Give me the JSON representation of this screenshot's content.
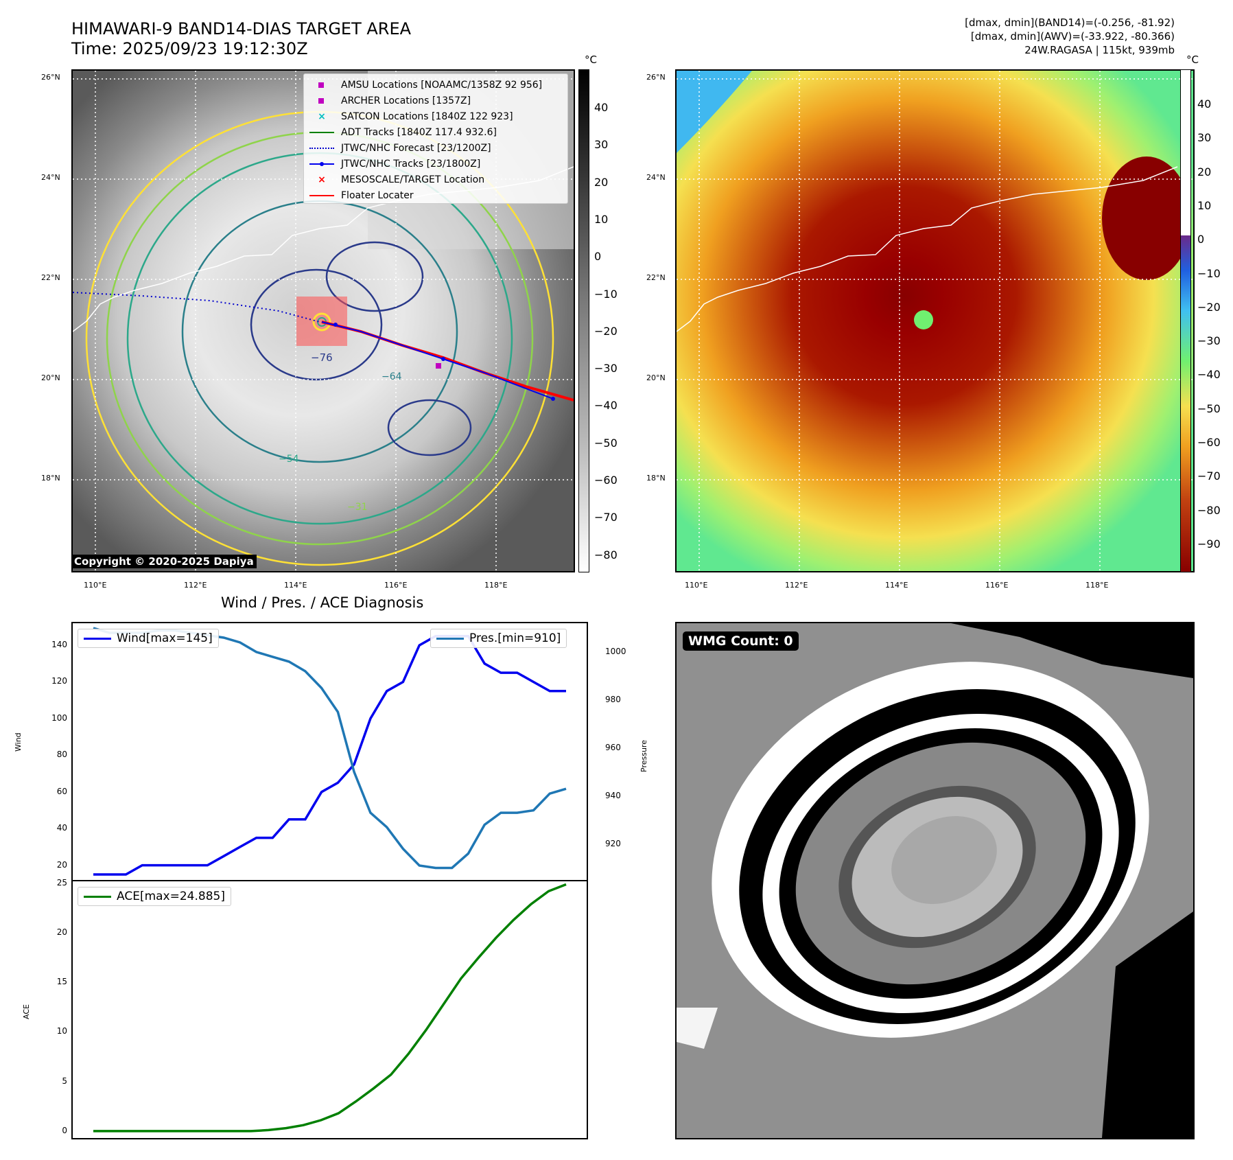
{
  "header": {
    "title": "HIMAWARI-9 BAND14-DIAS TARGET AREA",
    "time": "Time: 2025/09/23 19:12:30Z",
    "stats_band14": "[dmax, dmin](BAND14)=(-0.256, -81.92)",
    "stats_awv": "[dmax, dmin](AWV)=(-33.922, -80.366)",
    "storm": "24W.RAGASA | 115kt, 939mb"
  },
  "map_axes": {
    "lat_labels": [
      "26°N",
      "24°N",
      "22°N",
      "20°N",
      "18°N"
    ],
    "lon_labels": [
      "110°E",
      "112°E",
      "114°E",
      "116°E",
      "118°E"
    ]
  },
  "left_map": {
    "legend": [
      {
        "label": "AMSU Locations [NOAAMC/1358Z 92 956]",
        "symbol": "square",
        "color": "#c000c0"
      },
      {
        "label": "ARCHER Locations [1357Z]",
        "symbol": "square",
        "color": "#c000c0"
      },
      {
        "label": "SATCON Locations [1840Z 122 923]",
        "symbol": "x",
        "color": "#00bfbf"
      },
      {
        "label": "ADT Tracks [1840Z 117.4 932.6]",
        "symbol": "line",
        "color": "#008000"
      },
      {
        "label": "JTWC/NHC Forecast [23/1200Z]",
        "symbol": "dotted",
        "color": "#0000cc"
      },
      {
        "label": "JTWC/NHC Tracks [23/1800Z]",
        "symbol": "line-dot",
        "color": "#0000ee"
      },
      {
        "label": "MESOSCALE/TARGET Location",
        "symbol": "x",
        "color": "#ff0000"
      },
      {
        "label": "Floater Locater",
        "symbol": "line",
        "color": "#ff0000"
      }
    ],
    "colorbar": {
      "unit": "°C",
      "ticks": [
        "40",
        "30",
        "20",
        "10",
        "0",
        "−10",
        "−20",
        "−30",
        "−40",
        "−50",
        "−60",
        "−70",
        "−80"
      ]
    },
    "contour_labels": [
      "−76",
      "−64",
      "−54",
      "−31"
    ],
    "copyright": "Copyright © 2020-2025 Dapiya"
  },
  "right_map": {
    "colorbar": {
      "unit": "°C",
      "ticks": [
        "40",
        "30",
        "20",
        "10",
        "0",
        "−10",
        "−20",
        "−30",
        "−40",
        "−50",
        "−60",
        "−70",
        "−80",
        "−90"
      ]
    }
  },
  "wmg": {
    "label": "WMG Count: 0"
  },
  "chart_data": [
    {
      "type": "line",
      "title": "Wind / Pres. / ACE Diagnosis",
      "ylabel": "Wind",
      "ylabel_right": "Pressure",
      "ylim": [
        12,
        152
      ],
      "ylim_right": [
        905,
        1012
      ],
      "yticks": [
        20,
        40,
        60,
        80,
        100,
        120,
        140
      ],
      "yticks_right": [
        920,
        940,
        960,
        980,
        1000
      ],
      "series": [
        {
          "name": "Wind[max=145]",
          "axis": "left",
          "color": "#0000ee",
          "values": [
            15,
            15,
            15,
            20,
            20,
            20,
            20,
            20,
            25,
            30,
            35,
            35,
            45,
            45,
            60,
            65,
            75,
            100,
            115,
            120,
            140,
            145,
            145,
            145,
            130,
            125,
            125,
            120,
            115,
            115
          ]
        },
        {
          "name": "Pres.[min=910]",
          "axis": "right",
          "color": "#1f77b4",
          "values": [
            1010,
            1008,
            1008,
            1008,
            1009,
            1009,
            1008,
            1007,
            1006,
            1004,
            1000,
            998,
            996,
            992,
            985,
            975,
            950,
            933,
            927,
            918,
            911,
            910,
            910,
            916,
            928,
            933,
            933,
            934,
            941,
            943
          ]
        }
      ]
    },
    {
      "type": "line",
      "ylabel": "ACE",
      "ylim": [
        -0.7,
        25.2
      ],
      "yticks": [
        0,
        5,
        10,
        15,
        20,
        25
      ],
      "series": [
        {
          "name": "ACE[max=24.885]",
          "color": "#008000",
          "values": [
            0,
            0,
            0,
            0,
            0,
            0,
            0,
            0,
            0,
            0,
            0.1,
            0.3,
            0.6,
            1.1,
            1.8,
            3.0,
            4.3,
            5.7,
            7.8,
            10.2,
            12.8,
            15.4,
            17.5,
            19.5,
            21.3,
            22.9,
            24.2,
            24.885
          ]
        }
      ]
    }
  ]
}
